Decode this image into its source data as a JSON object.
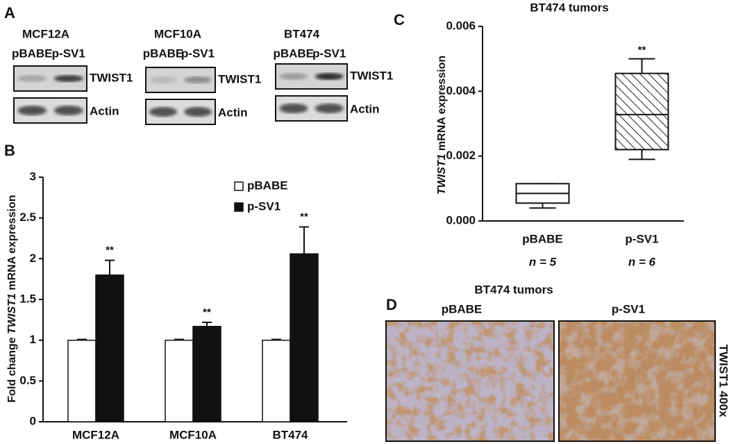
{
  "panel_labels": [
    "A",
    "B",
    "C",
    "D"
  ],
  "blots": [
    {
      "cell_line": "MCF12A",
      "lanes": [
        "pBABE",
        "p-SV1"
      ],
      "rows": [
        "TWIST1",
        "Actin"
      ]
    },
    {
      "cell_line": "MCF10A",
      "lanes": [
        "pBABE",
        "p-SV1"
      ],
      "rows": [
        "TWIST1",
        "Actin"
      ]
    },
    {
      "cell_line": "BT474",
      "lanes": [
        "pBABE",
        "p-SV1"
      ],
      "rows": [
        "TWIST1",
        "Actin"
      ]
    }
  ],
  "chart_data": [
    {
      "type": "bar",
      "y_label_parts": [
        "Fold  change",
        "TWIST1",
        "mRNA expression"
      ],
      "categories": [
        "MCF12A",
        "MCF10A",
        "BT474"
      ],
      "series": [
        {
          "name": "pBABE",
          "color": "#ffffff",
          "values": [
            1,
            1,
            1
          ],
          "errors": [
            0.01,
            0.01,
            0.01
          ]
        },
        {
          "name": "p-SV1",
          "color": "#111111",
          "values": [
            1.8,
            1.17,
            2.06
          ],
          "errors": [
            0.18,
            0.05,
            0.33
          ],
          "significance": [
            "**",
            "**",
            "**"
          ]
        }
      ],
      "ylim": [
        0,
        3
      ],
      "yticks": [
        0,
        0.5,
        1,
        1.5,
        2,
        2.5,
        3
      ]
    },
    {
      "type": "box",
      "title": "BT474 tumors",
      "y_label_parts": [
        "TWIST1",
        "mRNA expression"
      ],
      "categories": [
        "pBABE",
        "p-SV1"
      ],
      "sample_sizes": [
        "n = 5",
        "n = 6"
      ],
      "boxes": [
        {
          "min": 0.0004,
          "q1": 0.00055,
          "median": 0.00085,
          "q3": 0.00115,
          "max": 0.00115
        },
        {
          "min": 0.0019,
          "q1": 0.0022,
          "median": 0.00328,
          "q3": 0.00455,
          "max": 0.005
        }
      ],
      "hatched": [
        false,
        true
      ],
      "significance": [
        null,
        "**"
      ],
      "ylim": [
        0,
        0.006
      ],
      "yticks": [
        {
          "value": 0,
          "label": "0.000"
        },
        {
          "value": 0.002,
          "label": "0.002"
        },
        {
          "value": 0.004,
          "label": "0.004"
        },
        {
          "value": 0.006,
          "label": "0.006"
        }
      ]
    }
  ],
  "ihc": {
    "title": "BT474 tumors",
    "images": [
      "pBABE",
      "p-SV1"
    ],
    "stain": "TWIST1  400x"
  }
}
